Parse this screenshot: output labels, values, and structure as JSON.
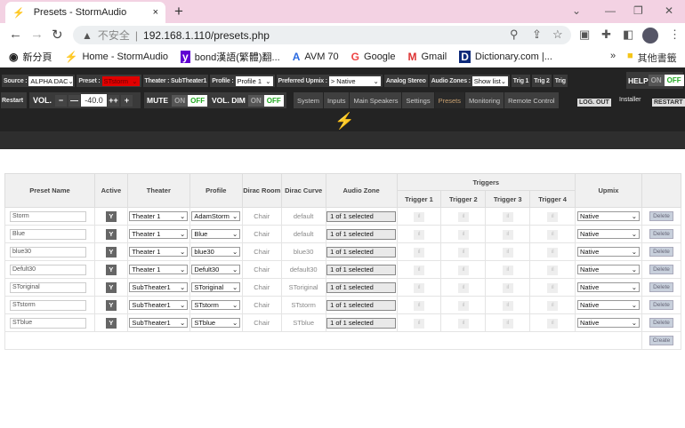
{
  "browser": {
    "tab_title": "Presets - StormAudio",
    "new_tab": "+",
    "close": "×",
    "url_warning": "不安全",
    "url": "192.168.1.110/presets.php",
    "bookmarks": [
      "新分頁",
      "Home - StormAudio",
      "bond漢語(繁體)翻...",
      "AVM 70",
      "Google",
      "Gmail",
      "Dictionary.com |..."
    ],
    "more": "»",
    "other_bookmarks": "其他書籤"
  },
  "toolbar": {
    "source_label": "Source :",
    "source_value": "ALPHA DAC",
    "preset_label": "Preset :",
    "preset_value": "STstorm",
    "theater_label": "Theater : SubTheater1",
    "profile_label": "Profile :",
    "profile_value": "Profile 1",
    "upmix_label": "Preferred Upmix :",
    "upmix_value": "> Native",
    "analog": "Analog Stereo",
    "zones_label": "Audio Zones :",
    "zones_value": "Show list",
    "trig1": "Trig 1",
    "trig2": "Trig 2",
    "trig3": "Trig",
    "help": "HELP",
    "on": "ON",
    "off": "OFF",
    "restart_small": "Restart",
    "vol": "VOL.",
    "minus": "−",
    "minus2": "—",
    "volume": "-40.0",
    "plus2": "++",
    "plus": "+",
    "mute": "MUTE",
    "voldim": "VOL. DIM",
    "menu": [
      "System",
      "Inputs",
      "Main Speakers",
      "Settings",
      "Presets",
      "Monitoring",
      "Remote Control"
    ],
    "active_menu": "Presets",
    "logout": "LOG. OUT",
    "installer": "Installer",
    "restart": "RESTART",
    "accent": "#c8a070",
    "preset_color": "#e00000"
  },
  "table": {
    "headers": {
      "name": "Preset Name",
      "active": "Active",
      "theater": "Theater",
      "profile": "Profile",
      "dirac_room": "Dirac Room",
      "dirac_curve": "Dirac Curve",
      "audio_zone": "Audio Zone",
      "triggers": "Triggers",
      "t1": "Trigger 1",
      "t2": "Trigger 2",
      "t3": "Trigger 3",
      "t4": "Trigger 4",
      "upmix": "Upmix"
    },
    "active_label": "Y",
    "trigger_label": "ıl",
    "delete": "Delete",
    "create": "Create",
    "rows": [
      {
        "name": "Storm",
        "theater": "Theater 1",
        "profile": "AdamStorm",
        "room": "Chair",
        "curve": "default",
        "zone": "1 of 1 selected",
        "upmix": "Native"
      },
      {
        "name": "Blue",
        "theater": "Theater 1",
        "profile": "Blue",
        "room": "Chair",
        "curve": "default",
        "zone": "1 of 1 selected",
        "upmix": "Native"
      },
      {
        "name": "blue30",
        "theater": "Theater 1",
        "profile": "blue30",
        "room": "Chair",
        "curve": "blue30",
        "zone": "1 of 1 selected",
        "upmix": "Native"
      },
      {
        "name": "Defult30",
        "theater": "Theater 1",
        "profile": "Defult30",
        "room": "Chair",
        "curve": "default30",
        "zone": "1 of 1 selected",
        "upmix": "Native"
      },
      {
        "name": "SToriginal",
        "theater": "SubTheater1",
        "profile": "SToriginal",
        "room": "Chair",
        "curve": "SToriginal",
        "zone": "1 of 1 selected",
        "upmix": "Native"
      },
      {
        "name": "STstorm",
        "theater": "SubTheater1",
        "profile": "STstorm",
        "room": "Chair",
        "curve": "STstorm",
        "zone": "1 of 1 selected",
        "upmix": "Native"
      },
      {
        "name": "STblue",
        "theater": "SubTheater1",
        "profile": "STblue",
        "room": "Chair",
        "curve": "STblue",
        "zone": "1 of 1 selected",
        "upmix": "Native"
      }
    ]
  }
}
